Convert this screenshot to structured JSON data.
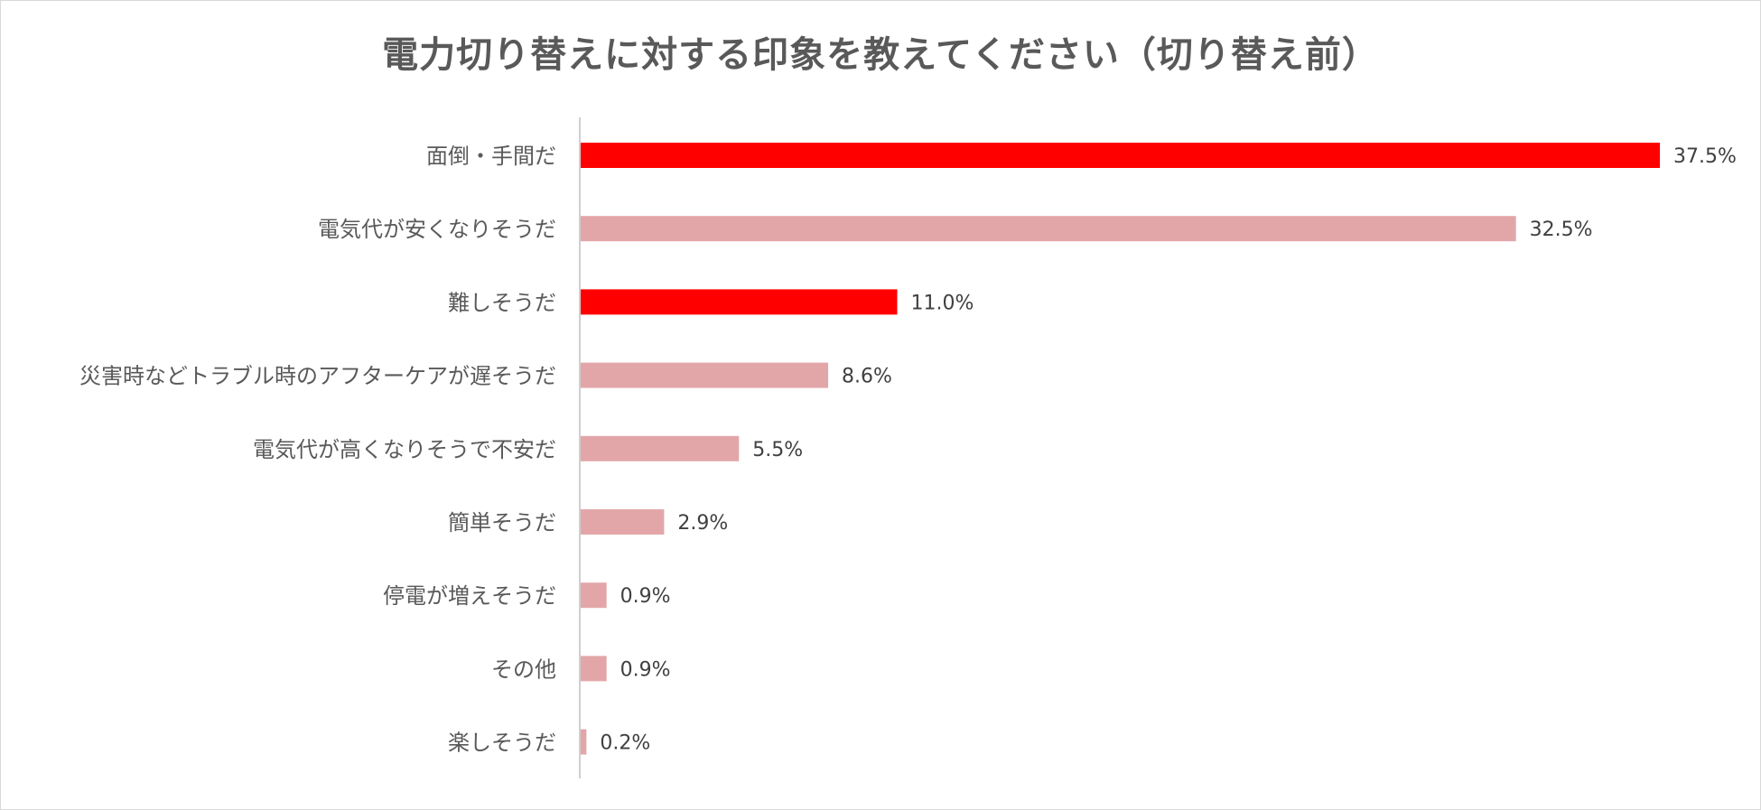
{
  "chart_data": {
    "type": "bar",
    "orientation": "horizontal",
    "title": "電力切り替えに対する印象を教えてください（切り替え前）",
    "categories": [
      "面倒・手間だ",
      "電気代が安くなりそうだ",
      "難しそうだ",
      "災害時などトラブル時のアフターケアが遅そうだ",
      "電気代が高くなりそうで不安だ",
      "簡単そうだ",
      "停電が増えそうだ",
      "その他",
      "楽しそうだ"
    ],
    "values": [
      37.5,
      32.5,
      11.0,
      8.6,
      5.5,
      2.9,
      0.9,
      0.9,
      0.2
    ],
    "value_labels": [
      "37.5%",
      "32.5%",
      "11.0%",
      "8.6%",
      "5.5%",
      "2.9%",
      "0.9%",
      "0.9%",
      "0.2%"
    ],
    "highlight": [
      true,
      false,
      true,
      false,
      false,
      false,
      false,
      false,
      false
    ],
    "colors": {
      "highlight": "#ff0000",
      "normal": "#e3a6a8",
      "axis": "#bfbfbf"
    },
    "xlim": [
      0,
      37.5
    ],
    "grid": false,
    "legend": "none"
  }
}
